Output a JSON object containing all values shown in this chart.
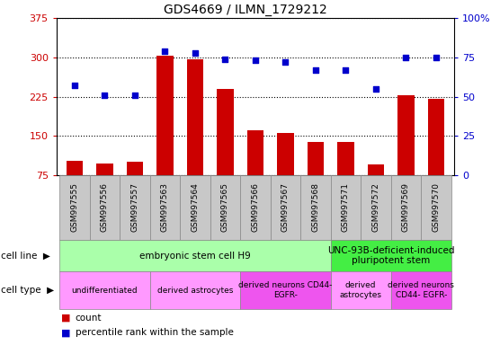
{
  "title": "GDS4669 / ILMN_1729212",
  "samples": [
    "GSM997555",
    "GSM997556",
    "GSM997557",
    "GSM997563",
    "GSM997564",
    "GSM997565",
    "GSM997566",
    "GSM997567",
    "GSM997568",
    "GSM997571",
    "GSM997572",
    "GSM997569",
    "GSM997570"
  ],
  "counts": [
    103,
    97,
    100,
    303,
    297,
    240,
    160,
    155,
    138,
    138,
    96,
    228,
    220
  ],
  "percentiles": [
    57,
    51,
    51,
    79,
    78,
    74,
    73,
    72,
    67,
    67,
    55,
    75,
    75
  ],
  "ylim_left": [
    75,
    375
  ],
  "ylim_right": [
    0,
    100
  ],
  "yticks_left": [
    75,
    150,
    225,
    300,
    375
  ],
  "yticks_right": [
    0,
    25,
    50,
    75,
    100
  ],
  "bar_color": "#cc0000",
  "scatter_color": "#0000cc",
  "cell_line_groups": [
    {
      "label": "embryonic stem cell H9",
      "start": 0,
      "end": 9,
      "color": "#aaffaa"
    },
    {
      "label": "UNC-93B-deficient-induced\npluripotent stem",
      "start": 9,
      "end": 13,
      "color": "#44ee44"
    }
  ],
  "cell_type_groups": [
    {
      "label": "undifferentiated",
      "start": 0,
      "end": 3,
      "color": "#ff99ff"
    },
    {
      "label": "derived astrocytes",
      "start": 3,
      "end": 6,
      "color": "#ff99ff"
    },
    {
      "label": "derived neurons CD44-\nEGFR-",
      "start": 6,
      "end": 9,
      "color": "#ee55ee"
    },
    {
      "label": "derived\nastrocytes",
      "start": 9,
      "end": 11,
      "color": "#ff99ff"
    },
    {
      "label": "derived neurons\nCD44- EGFR-",
      "start": 11,
      "end": 13,
      "color": "#ee55ee"
    }
  ],
  "bar_width": 0.55,
  "tick_gray": "#c8c8c8",
  "fig_bg": "#ffffff"
}
